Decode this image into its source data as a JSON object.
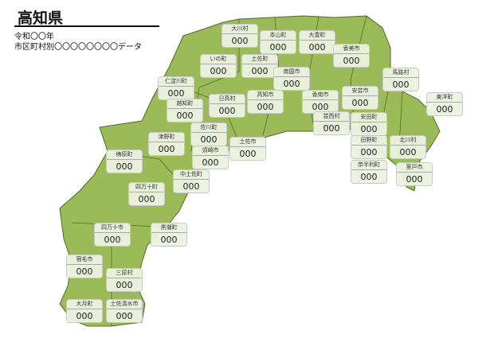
{
  "header": {
    "title": "高知県",
    "year": "令和〇〇年",
    "subtitle": "市区町村別〇〇〇〇〇〇〇〇データ"
  },
  "colors": {
    "land": "#9bbb59",
    "border": "#4f6b2a"
  },
  "municipalities": [
    {
      "name": "大川村",
      "value": "000"
    },
    {
      "name": "本山町",
      "value": "000"
    },
    {
      "name": "大豊町",
      "value": "000"
    },
    {
      "name": "香美市",
      "value": "000"
    },
    {
      "name": "いの町",
      "value": "000"
    },
    {
      "name": "土佐町",
      "value": "000"
    },
    {
      "name": "南国市",
      "value": "000"
    },
    {
      "name": "仁淀川町",
      "value": "000"
    },
    {
      "name": "越知町",
      "value": "000"
    },
    {
      "name": "日高村",
      "value": "000"
    },
    {
      "name": "高知市",
      "value": "000"
    },
    {
      "name": "香南市",
      "value": "000"
    },
    {
      "name": "芸西村",
      "value": "000"
    },
    {
      "name": "安芸市",
      "value": "000"
    },
    {
      "name": "馬路村",
      "value": "000"
    },
    {
      "name": "東洋町",
      "value": "000"
    },
    {
      "name": "安田町",
      "value": "000"
    },
    {
      "name": "田野町",
      "value": "000"
    },
    {
      "name": "北川村",
      "value": "000"
    },
    {
      "name": "奈半利町",
      "value": "000"
    },
    {
      "name": "室戸市",
      "value": "000"
    },
    {
      "name": "津野町",
      "value": "000"
    },
    {
      "name": "梼原町",
      "value": "000"
    },
    {
      "name": "佐川町",
      "value": "000"
    },
    {
      "name": "須崎市",
      "value": "000"
    },
    {
      "name": "土佐市",
      "value": "000"
    },
    {
      "name": "中土佐町",
      "value": "000"
    },
    {
      "name": "四万十町",
      "value": "000"
    },
    {
      "name": "四万十市",
      "value": "000"
    },
    {
      "name": "黒潮町",
      "value": "000"
    },
    {
      "name": "宿毛市",
      "value": "000"
    },
    {
      "name": "三原村",
      "value": "000"
    },
    {
      "name": "大月町",
      "value": "000"
    },
    {
      "name": "土佐清水市",
      "value": "000"
    }
  ]
}
